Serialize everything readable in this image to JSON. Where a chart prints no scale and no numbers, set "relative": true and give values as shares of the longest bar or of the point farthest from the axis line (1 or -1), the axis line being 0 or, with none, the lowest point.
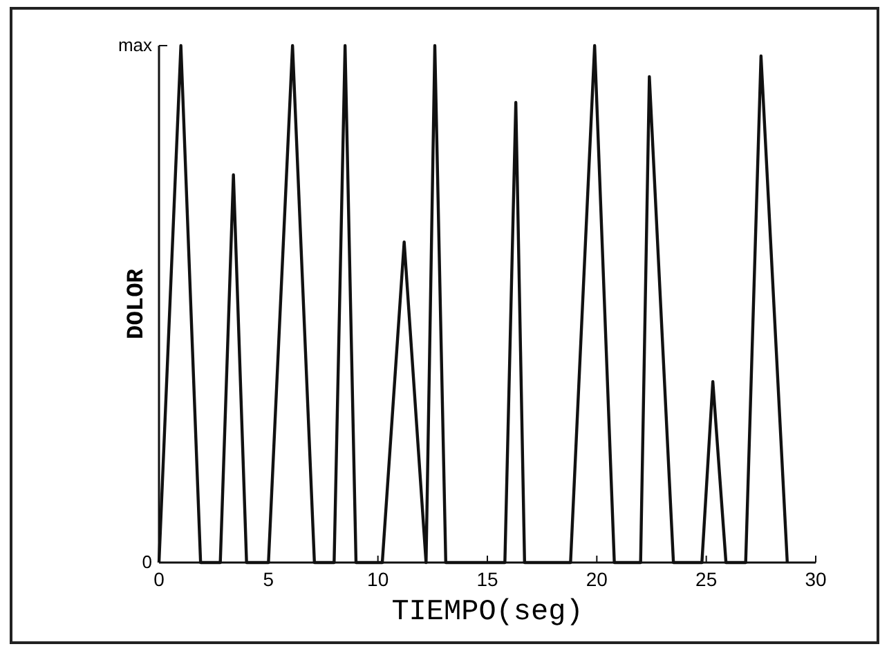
{
  "chart_data": {
    "type": "line",
    "xlabel": "TIEMPO(seg)",
    "ylabel": "DOLOR",
    "x": [
      0,
      1.0,
      1.9,
      2.8,
      3.4,
      4.0,
      5.0,
      6.1,
      7.1,
      8.0,
      8.5,
      9.0,
      10.2,
      11.2,
      12.2,
      12.6,
      13.1,
      15.8,
      16.3,
      16.7,
      18.8,
      19.9,
      20.8,
      22.0,
      22.4,
      23.5,
      24.8,
      25.3,
      25.9,
      26.8,
      27.5,
      28.7
    ],
    "series": [
      {
        "color": "#111111",
        "values": [
          0,
          1,
          0,
          0,
          0.75,
          0,
          0,
          1,
          0,
          0,
          1,
          0,
          0,
          0.62,
          0,
          1,
          0,
          0,
          0.89,
          0,
          0,
          1,
          0,
          0,
          0.94,
          0,
          0,
          0.35,
          0,
          0,
          0.98,
          0
        ]
      }
    ],
    "xlim": [
      0,
      30
    ],
    "xticks": [
      0,
      5,
      10,
      15,
      20,
      25,
      30
    ],
    "relative": true,
    "annotations": [
      "max",
      "0"
    ],
    "grid": false,
    "marker": "none",
    "line_style": "solid"
  }
}
